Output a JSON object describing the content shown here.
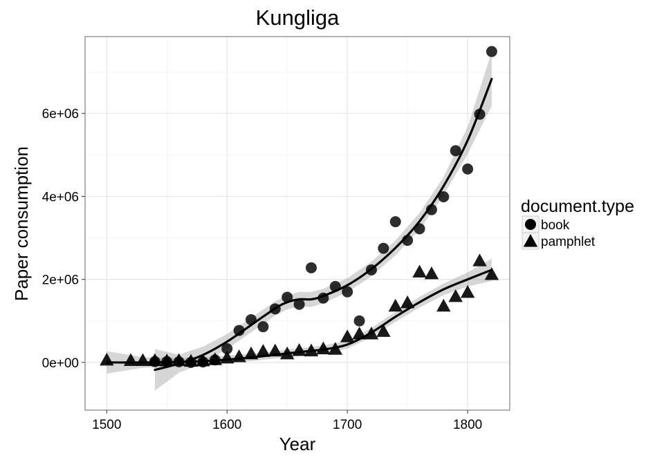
{
  "chart_data": {
    "type": "scatter",
    "title": "Kungliga",
    "xlabel": "Year",
    "ylabel": "Paper consumption",
    "xlim": [
      1482,
      1835
    ],
    "ylim": [
      -1150000,
      7850000
    ],
    "x_ticks": [
      1500,
      1600,
      1700,
      1800
    ],
    "x_tick_labels": [
      "1500",
      "1600",
      "1700",
      "1800"
    ],
    "y_ticks": [
      0,
      2000000,
      4000000,
      6000000
    ],
    "y_tick_labels": [
      "0e+00",
      "2e+06",
      "4e+06",
      "6e+06"
    ],
    "grid": true,
    "legend": {
      "title": "document.type",
      "position": "right",
      "entries": [
        "book",
        "pamphlet"
      ]
    },
    "series": [
      {
        "name": "book",
        "marker": "circle",
        "points": [
          [
            1540,
            20000
          ],
          [
            1550,
            20000
          ],
          [
            1560,
            15000
          ],
          [
            1570,
            0
          ],
          [
            1580,
            10000
          ],
          [
            1590,
            60000
          ],
          [
            1600,
            330000
          ],
          [
            1610,
            770000
          ],
          [
            1620,
            1030000
          ],
          [
            1630,
            860000
          ],
          [
            1640,
            1290000
          ],
          [
            1650,
            1570000
          ],
          [
            1660,
            1400000
          ],
          [
            1670,
            2280000
          ],
          [
            1680,
            1550000
          ],
          [
            1690,
            1830000
          ],
          [
            1700,
            1700000
          ],
          [
            1710,
            1000000
          ],
          [
            1720,
            2230000
          ],
          [
            1730,
            2750000
          ],
          [
            1740,
            3390000
          ],
          [
            1750,
            2940000
          ],
          [
            1760,
            3220000
          ],
          [
            1770,
            3680000
          ],
          [
            1780,
            3990000
          ],
          [
            1790,
            5100000
          ],
          [
            1800,
            4660000
          ],
          [
            1810,
            5980000
          ],
          [
            1820,
            7490000
          ]
        ],
        "smooth": [
          [
            1540,
            -180000
          ],
          [
            1560,
            -30000
          ],
          [
            1580,
            180000
          ],
          [
            1600,
            500000
          ],
          [
            1620,
            900000
          ],
          [
            1640,
            1300000
          ],
          [
            1650,
            1450000
          ],
          [
            1660,
            1520000
          ],
          [
            1670,
            1520000
          ],
          [
            1680,
            1600000
          ],
          [
            1700,
            1860000
          ],
          [
            1720,
            2250000
          ],
          [
            1740,
            2760000
          ],
          [
            1760,
            3400000
          ],
          [
            1780,
            4250000
          ],
          [
            1800,
            5350000
          ],
          [
            1820,
            6830000
          ]
        ],
        "ribbon_halfwidth": [
          [
            1540,
            500000
          ],
          [
            1560,
            220000
          ],
          [
            1600,
            180000
          ],
          [
            1640,
            170000
          ],
          [
            1670,
            180000
          ],
          [
            1700,
            170000
          ],
          [
            1740,
            180000
          ],
          [
            1780,
            220000
          ],
          [
            1800,
            330000
          ],
          [
            1820,
            650000
          ]
        ]
      },
      {
        "name": "pamphlet",
        "marker": "triangle",
        "points": [
          [
            1500,
            50000
          ],
          [
            1520,
            40000
          ],
          [
            1530,
            40000
          ],
          [
            1540,
            40000
          ],
          [
            1550,
            30000
          ],
          [
            1560,
            40000
          ],
          [
            1570,
            20000
          ],
          [
            1580,
            30000
          ],
          [
            1590,
            60000
          ],
          [
            1600,
            100000
          ],
          [
            1610,
            130000
          ],
          [
            1620,
            200000
          ],
          [
            1630,
            260000
          ],
          [
            1640,
            270000
          ],
          [
            1650,
            200000
          ],
          [
            1660,
            280000
          ],
          [
            1670,
            270000
          ],
          [
            1680,
            320000
          ],
          [
            1690,
            310000
          ],
          [
            1700,
            610000
          ],
          [
            1710,
            680000
          ],
          [
            1720,
            680000
          ],
          [
            1730,
            740000
          ],
          [
            1740,
            1350000
          ],
          [
            1750,
            1430000
          ],
          [
            1760,
            2170000
          ],
          [
            1770,
            2130000
          ],
          [
            1780,
            1350000
          ],
          [
            1790,
            1580000
          ],
          [
            1800,
            1680000
          ],
          [
            1810,
            2440000
          ],
          [
            1820,
            2110000
          ]
        ],
        "smooth": [
          [
            1500,
            0
          ],
          [
            1540,
            0
          ],
          [
            1580,
            30000
          ],
          [
            1620,
            120000
          ],
          [
            1660,
            250000
          ],
          [
            1680,
            310000
          ],
          [
            1700,
            430000
          ],
          [
            1720,
            720000
          ],
          [
            1740,
            1100000
          ],
          [
            1760,
            1450000
          ],
          [
            1780,
            1760000
          ],
          [
            1800,
            2000000
          ],
          [
            1820,
            2230000
          ]
        ],
        "ribbon_halfwidth": [
          [
            1500,
            270000
          ],
          [
            1530,
            130000
          ],
          [
            1560,
            90000
          ],
          [
            1600,
            90000
          ],
          [
            1650,
            90000
          ],
          [
            1700,
            100000
          ],
          [
            1740,
            120000
          ],
          [
            1780,
            140000
          ],
          [
            1800,
            170000
          ],
          [
            1820,
            270000
          ]
        ]
      }
    ]
  }
}
